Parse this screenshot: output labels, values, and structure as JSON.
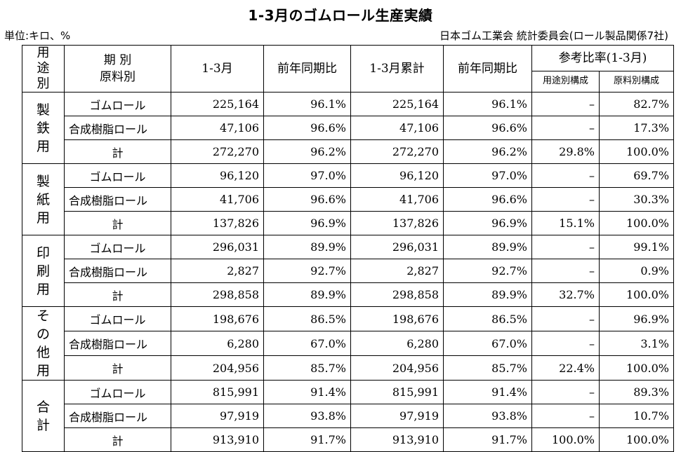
{
  "title": "1-3月のゴムロール生産実績",
  "unit": "単位:キロ、%",
  "source": "日本ゴム工業会 統計委員会(ロール製品関係7社)",
  "header": {
    "use": [
      "用",
      "途",
      "別"
    ],
    "period": "期 別",
    "material": "原料別",
    "col_1_3": "1-3月",
    "col_yoy": "前年同期比",
    "col_cum": "1-3月累計",
    "col_yoy2": "前年同期比",
    "ref": "参考比率(1-3月)",
    "ref_use": "用途別構成",
    "ref_mat": "原料別構成"
  },
  "groups": [
    {
      "name": [
        "製",
        "鉄",
        "用"
      ],
      "rows": [
        {
          "mat": "ゴムロール",
          "v1": "225,164",
          "y1": "96.1%",
          "v2": "225,164",
          "y2": "96.1%",
          "use": "–",
          "matr": "82.7%"
        },
        {
          "mat": "合成樹脂ロール",
          "v1": "47,106",
          "y1": "96.6%",
          "v2": "47,106",
          "y2": "96.6%",
          "use": "–",
          "matr": "17.3%"
        },
        {
          "mat": "計",
          "v1": "272,270",
          "y1": "96.2%",
          "v2": "272,270",
          "y2": "96.2%",
          "use": "29.8%",
          "matr": "100.0%"
        }
      ]
    },
    {
      "name": [
        "製",
        "紙",
        "用"
      ],
      "rows": [
        {
          "mat": "ゴムロール",
          "v1": "96,120",
          "y1": "97.0%",
          "v2": "96,120",
          "y2": "97.0%",
          "use": "–",
          "matr": "69.7%"
        },
        {
          "mat": "合成樹脂ロール",
          "v1": "41,706",
          "y1": "96.6%",
          "v2": "41,706",
          "y2": "96.6%",
          "use": "–",
          "matr": "30.3%"
        },
        {
          "mat": "計",
          "v1": "137,826",
          "y1": "96.9%",
          "v2": "137,826",
          "y2": "96.9%",
          "use": "15.1%",
          "matr": "100.0%"
        }
      ]
    },
    {
      "name": [
        "印",
        "刷",
        "用"
      ],
      "rows": [
        {
          "mat": "ゴムロール",
          "v1": "296,031",
          "y1": "89.9%",
          "v2": "296,031",
          "y2": "89.9%",
          "use": "–",
          "matr": "99.1%"
        },
        {
          "mat": "合成樹脂ロール",
          "v1": "2,827",
          "y1": "92.7%",
          "v2": "2,827",
          "y2": "92.7%",
          "use": "–",
          "matr": "0.9%"
        },
        {
          "mat": "計",
          "v1": "298,858",
          "y1": "89.9%",
          "v2": "298,858",
          "y2": "89.9%",
          "use": "32.7%",
          "matr": "100.0%"
        }
      ]
    },
    {
      "name": [
        "そ",
        "の",
        "他",
        "用"
      ],
      "rows": [
        {
          "mat": "ゴムロール",
          "v1": "198,676",
          "y1": "86.5%",
          "v2": "198,676",
          "y2": "86.5%",
          "use": "–",
          "matr": "96.9%"
        },
        {
          "mat": "合成樹脂ロール",
          "v1": "6,280",
          "y1": "67.0%",
          "v2": "6,280",
          "y2": "67.0%",
          "use": "–",
          "matr": "3.1%"
        },
        {
          "mat": "計",
          "v1": "204,956",
          "y1": "85.7%",
          "v2": "204,956",
          "y2": "85.7%",
          "use": "22.4%",
          "matr": "100.0%"
        }
      ]
    },
    {
      "name": [
        "合",
        "計"
      ],
      "rows": [
        {
          "mat": "ゴムロール",
          "v1": "815,991",
          "y1": "91.4%",
          "v2": "815,991",
          "y2": "91.4%",
          "use": "–",
          "matr": "89.3%"
        },
        {
          "mat": "合成樹脂ロール",
          "v1": "97,919",
          "y1": "93.8%",
          "v2": "97,919",
          "y2": "93.8%",
          "use": "–",
          "matr": "10.7%"
        },
        {
          "mat": "計",
          "v1": "913,910",
          "y1": "91.7%",
          "v2": "913,910",
          "y2": "91.7%",
          "use": "100.0%",
          "matr": "100.0%"
        }
      ]
    }
  ]
}
